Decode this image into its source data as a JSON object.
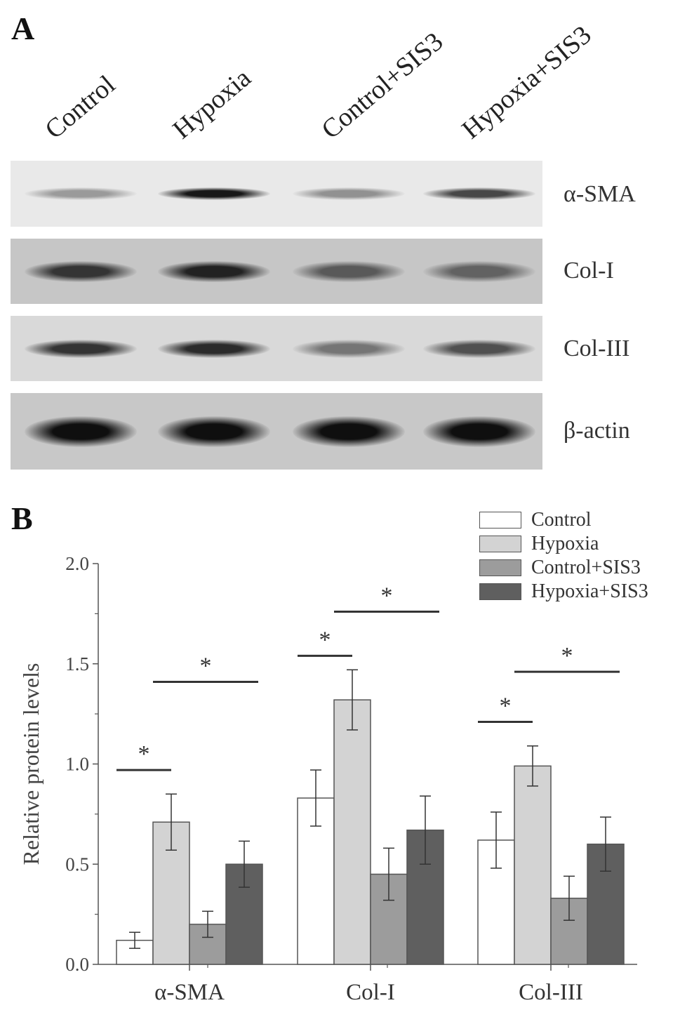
{
  "panel_a": {
    "label": "A",
    "lanes": [
      "Control",
      "Hypoxia",
      "Control+SIS3",
      "Hypoxia+SIS3"
    ],
    "blots": [
      {
        "protein": "α-SMA",
        "band_darkness": [
          0.25,
          0.95,
          0.3,
          0.7
        ],
        "background": "#e9e9e9"
      },
      {
        "protein": "Col-I",
        "band_darkness": [
          0.8,
          0.9,
          0.6,
          0.55
        ],
        "background": "#c6c6c6"
      },
      {
        "protein": "Col-III",
        "band_darkness": [
          0.8,
          0.85,
          0.45,
          0.65
        ],
        "background": "#d9d9d9"
      },
      {
        "protein": "β-actin",
        "band_darkness": [
          1.0,
          1.0,
          1.0,
          1.0
        ],
        "background": "#c8c8c8"
      }
    ]
  },
  "panel_b": {
    "label": "B"
  },
  "chart_data": {
    "type": "bar",
    "title": "",
    "xlabel": "",
    "ylabel": "Relative protein levels",
    "ylim": [
      0.0,
      2.0
    ],
    "yticks": [
      "0.0",
      "0.5",
      "1.0",
      "1.5",
      "2.0"
    ],
    "categories": [
      "α-SMA",
      "Col-I",
      "Col-III"
    ],
    "legend_position": "top-right",
    "series": [
      {
        "name": "Control",
        "color": "#ffffff",
        "values": [
          0.12,
          0.83,
          0.62
        ],
        "errors": [
          0.04,
          0.14,
          0.14
        ]
      },
      {
        "name": "Hypoxia",
        "color": "#d3d3d3",
        "values": [
          0.71,
          1.32,
          0.99
        ],
        "errors": [
          0.14,
          0.15,
          0.1
        ]
      },
      {
        "name": "Control+SIS3",
        "color": "#9c9c9c",
        "values": [
          0.2,
          0.45,
          0.33
        ],
        "errors": [
          0.065,
          0.13,
          0.11
        ]
      },
      {
        "name": "Hypoxia+SIS3",
        "color": "#5f5f5f",
        "values": [
          0.5,
          0.67,
          0.6
        ],
        "errors": [
          0.115,
          0.17,
          0.135
        ]
      }
    ],
    "significance": [
      {
        "category": 0,
        "from_series": 0,
        "to_series": 1,
        "level": 0.97,
        "mark": "*"
      },
      {
        "category": 0,
        "from_series": 1,
        "to_series": 3,
        "level": 1.41,
        "mark": "*"
      },
      {
        "category": 1,
        "from_series": 0,
        "to_series": 1,
        "level": 1.54,
        "mark": "*"
      },
      {
        "category": 1,
        "from_series": 1,
        "to_series": 3,
        "level": 1.76,
        "mark": "*"
      },
      {
        "category": 2,
        "from_series": 0,
        "to_series": 1,
        "level": 1.21,
        "mark": "*"
      },
      {
        "category": 2,
        "from_series": 1,
        "to_series": 3,
        "level": 1.46,
        "mark": "*"
      }
    ]
  }
}
